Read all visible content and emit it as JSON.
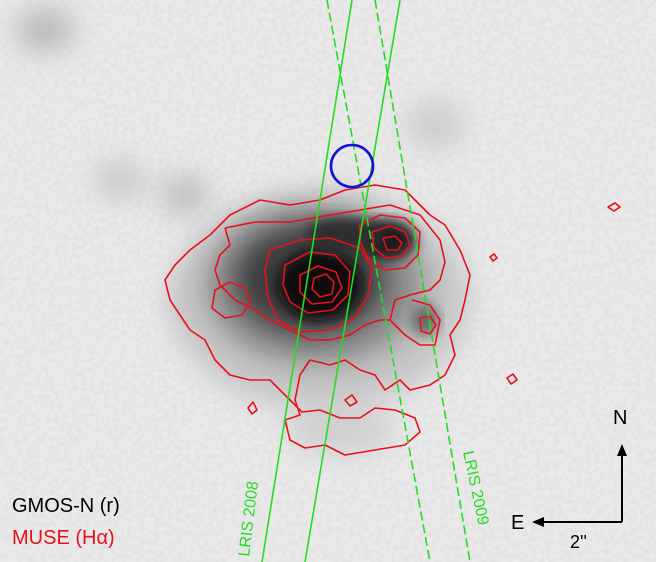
{
  "legend": {
    "line1": "GMOS-N (r)",
    "line2": "MUSE (Hα)",
    "line1_color": "#000000",
    "line2_color": "#e8101a"
  },
  "slits": {
    "slit_2008_label": "LRIS 2008",
    "slit_2009_label": "LRIS 2009",
    "color": "#22dd22"
  },
  "compass": {
    "north": "N",
    "east": "E",
    "scale": "2''"
  },
  "colors": {
    "contour": "#e8101a",
    "circle": "#1010dd",
    "background": "#e9e9e9"
  }
}
